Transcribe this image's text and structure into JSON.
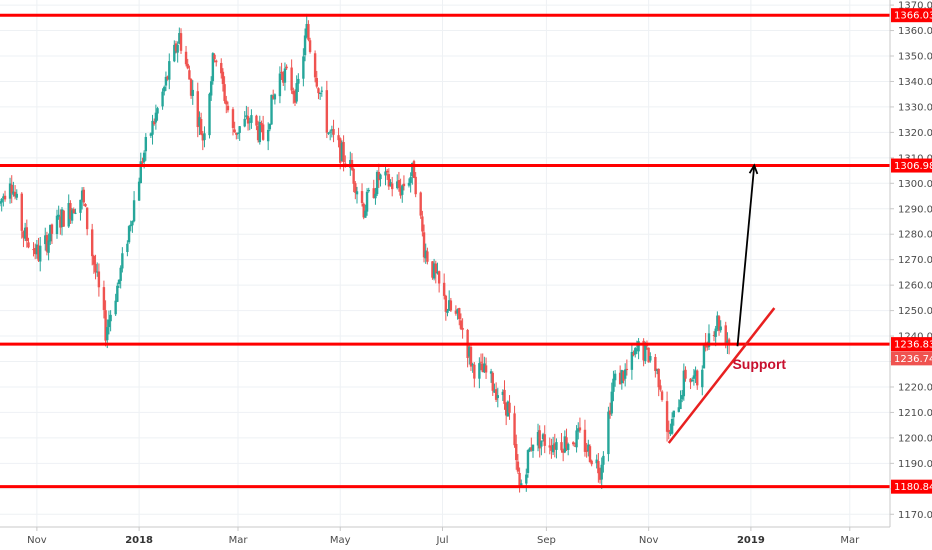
{
  "colors": {
    "background": "#ffffff",
    "grid": "#eef1f4",
    "up_candle": "#26a69a",
    "down_candle": "#ef5350",
    "level_line": "#ff0000",
    "support_line": "#e82020",
    "arrow": "#000000",
    "level_tag_bg": "#ff0000",
    "current_tag_bg": "#ef5350",
    "axis_text": "#4a4a4a",
    "axis_border": "#c8c8c8"
  },
  "chart_data": {
    "type": "candlestick",
    "instrument_hint": "daily candles",
    "grid": true,
    "ylim": [
      1165,
      1372
    ],
    "y_ticks": [
      "1170.00",
      "1180.00",
      "1190.00",
      "1200.00",
      "1210.00",
      "1220.00",
      "1230.00",
      "1240.00",
      "1250.00",
      "1260.00",
      "1270.00",
      "1280.00",
      "1290.00",
      "1300.00",
      "1310.00",
      "1320.00",
      "1330.00",
      "1340.00",
      "1350.00",
      "1360.00",
      "1370.00"
    ],
    "x_labels": [
      {
        "label": "Nov",
        "date": "2017-11-01",
        "bold": false
      },
      {
        "label": "2018",
        "date": "2018-01-01",
        "bold": true
      },
      {
        "label": "Mar",
        "date": "2018-03-01",
        "bold": false
      },
      {
        "label": "May",
        "date": "2018-05-01",
        "bold": false
      },
      {
        "label": "Jul",
        "date": "2018-07-01",
        "bold": false
      },
      {
        "label": "Sep",
        "date": "2018-09-01",
        "bold": false
      },
      {
        "label": "Nov",
        "date": "2018-11-01",
        "bold": false
      },
      {
        "label": "2019",
        "date": "2019-01-01",
        "bold": true
      },
      {
        "label": "Mar",
        "date": "2019-03-01",
        "bold": false
      }
    ],
    "x_range": [
      "2017-10-10",
      "2019-03-25"
    ],
    "price_path": [
      [
        "2017-10-10",
        1292
      ],
      [
        "2017-10-16",
        1303
      ],
      [
        "2017-10-24",
        1280
      ],
      [
        "2017-11-02",
        1272
      ],
      [
        "2017-11-14",
        1285
      ],
      [
        "2017-11-28",
        1295
      ],
      [
        "2017-12-06",
        1265
      ],
      [
        "2017-12-12",
        1242
      ],
      [
        "2017-12-20",
        1262
      ],
      [
        "2018-01-03",
        1310
      ],
      [
        "2018-01-15",
        1335
      ],
      [
        "2018-01-25",
        1358
      ],
      [
        "2018-02-08",
        1318
      ],
      [
        "2018-02-15",
        1352
      ],
      [
        "2018-02-26",
        1320
      ],
      [
        "2018-03-08",
        1325
      ],
      [
        "2018-03-16",
        1318
      ],
      [
        "2018-03-27",
        1345
      ],
      [
        "2018-04-05",
        1335
      ],
      [
        "2018-04-11",
        1360
      ],
      [
        "2018-04-24",
        1320
      ],
      [
        "2018-05-08",
        1305
      ],
      [
        "2018-05-15",
        1290
      ],
      [
        "2018-05-24",
        1302
      ],
      [
        "2018-06-06",
        1298
      ],
      [
        "2018-06-14",
        1305
      ],
      [
        "2018-06-20",
        1275
      ],
      [
        "2018-07-03",
        1252
      ],
      [
        "2018-07-12",
        1245
      ],
      [
        "2018-07-19",
        1228
      ],
      [
        "2018-07-27",
        1225
      ],
      [
        "2018-08-09",
        1212
      ],
      [
        "2018-08-16",
        1180
      ],
      [
        "2018-08-24",
        1200
      ],
      [
        "2018-09-07",
        1198
      ],
      [
        "2018-09-21",
        1200
      ],
      [
        "2018-10-03",
        1188
      ],
      [
        "2018-10-11",
        1222
      ],
      [
        "2018-10-19",
        1226
      ],
      [
        "2018-10-26",
        1235
      ],
      [
        "2018-11-02",
        1232
      ],
      [
        "2018-11-08",
        1222
      ],
      [
        "2018-11-13",
        1200
      ],
      [
        "2018-11-23",
        1225
      ],
      [
        "2018-11-30",
        1222
      ],
      [
        "2018-12-06",
        1240
      ],
      [
        "2018-12-12",
        1246
      ],
      [
        "2018-12-19",
        1238
      ]
    ],
    "horizontal_levels": [
      {
        "name": "resistance-top",
        "price": 1366.03,
        "label": "1366.03"
      },
      {
        "name": "resistance-mid",
        "price": 1306.98,
        "label": "1306.98"
      },
      {
        "name": "support-level",
        "price": 1236.83,
        "label": "1236.83"
      },
      {
        "name": "support-bottom",
        "price": 1180.84,
        "label": "1180.84"
      }
    ],
    "current_price": {
      "price": 1236.74,
      "label": "1236.74"
    },
    "support_trendline": {
      "from": [
        "2018-11-13",
        1198
      ],
      "to": [
        "2019-01-15",
        1251
      ]
    },
    "forecast_arrow": {
      "from": [
        "2018-12-24",
        1236
      ],
      "to": [
        "2019-01-03",
        1307
      ]
    },
    "annotations": [
      {
        "text": "Support",
        "at": [
          "2018-12-21",
          1227
        ]
      }
    ]
  }
}
